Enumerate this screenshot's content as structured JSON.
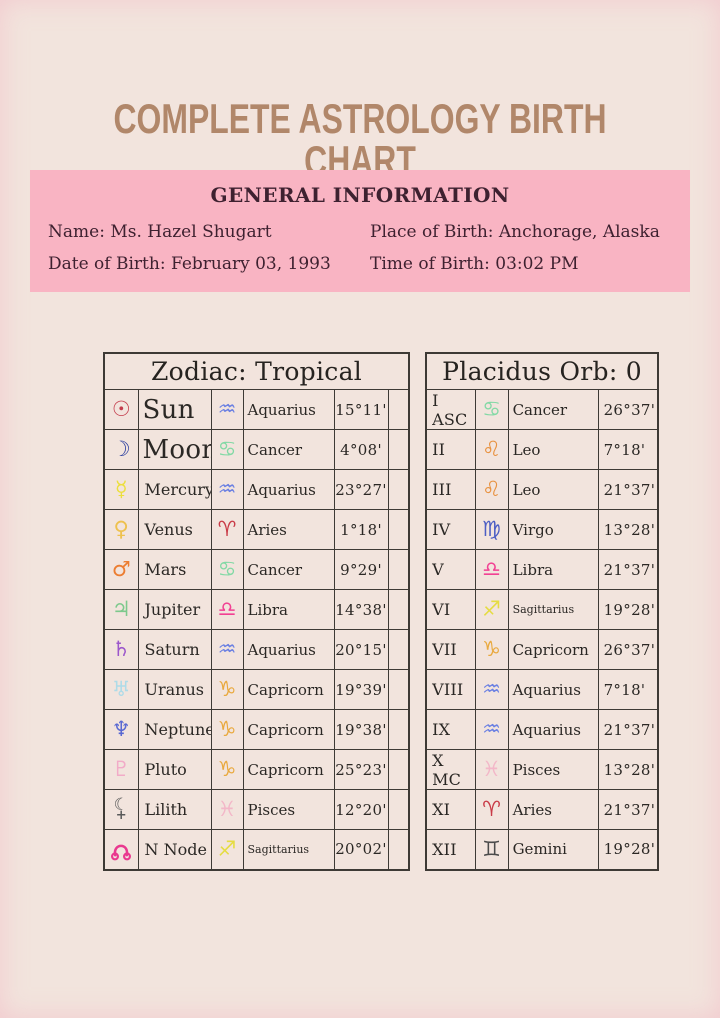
{
  "title": "COMPLETE ASTROLOGY BIRTH CHART",
  "general_info": {
    "heading": "GENERAL INFORMATION",
    "name": "Name: Ms. Hazel Shugart",
    "date_of_birth": "Date of Birth: February 03, 1993",
    "place_of_birth": "Place of Birth: Anchorage, Alaska",
    "time_of_birth": "Time of Birth: 03:02 PM"
  },
  "colors": {
    "background": "#f2e4dd",
    "pink_panel": "#f9b4c3",
    "title_brown": "#b1876a",
    "maroon_text": "#3e2130",
    "table_border": "#3e3a35"
  },
  "planet_icons": {
    "Sun": {
      "name": "sun-icon",
      "glyph": "☉",
      "color": "#c43c4c"
    },
    "Moon": {
      "name": "moon-icon",
      "glyph": "☽",
      "color": "#2c3f9f"
    },
    "Mercury": {
      "name": "mercury-icon",
      "glyph": "☿",
      "color": "#ecdf3d"
    },
    "Venus": {
      "name": "venus-icon",
      "glyph": "♀",
      "color": "#eec14e"
    },
    "Mars": {
      "name": "mars-icon",
      "glyph": "♂",
      "color": "#ec7d31"
    },
    "Jupiter": {
      "name": "jupiter-icon",
      "glyph": "♃",
      "color": "#7dc98c"
    },
    "Saturn": {
      "name": "saturn-icon",
      "glyph": "♄",
      "color": "#9c57cb"
    },
    "Uranus": {
      "name": "uranus-icon",
      "glyph": "♅",
      "color": "#aedbe8"
    },
    "Neptune": {
      "name": "neptune-icon",
      "glyph": "♆",
      "color": "#5a69d2"
    },
    "Pluto": {
      "name": "pluto-icon",
      "glyph": "♇",
      "color": "#f2abc8"
    },
    "Lilith": {
      "name": "lilith-icon",
      "glyph": "☾",
      "glyph2": "+",
      "color": "#5a5a5a"
    },
    "N Node": {
      "name": "north-node-icon",
      "svg": "node",
      "color": "#e9388f"
    }
  },
  "sign_icons": {
    "Aries": {
      "name": "aries-icon",
      "glyph": "♈",
      "color": "#c93b47"
    },
    "Gemini": {
      "name": "gemini-icon",
      "glyph": "♊",
      "color": "#4b4b4b"
    },
    "Cancer": {
      "name": "cancer-icon",
      "glyph": "♋",
      "color": "#83d9a5"
    },
    "Leo": {
      "name": "leo-icon",
      "glyph": "♌",
      "color": "#e8913f"
    },
    "Virgo": {
      "name": "virgo-icon",
      "glyph": "♍",
      "color": "#4c5ec4"
    },
    "Libra": {
      "name": "libra-icon",
      "glyph": "♎",
      "color": "#f24193"
    },
    "Sagittarius": {
      "name": "sagittarius-icon",
      "glyph": "♐",
      "color": "#e5dc42"
    },
    "Capricorn": {
      "name": "capricorn-icon",
      "glyph": "♑",
      "color": "#e9a93e"
    },
    "Aquarius": {
      "name": "aquarius-icon",
      "glyph": "♒",
      "color": "#6b80e2"
    },
    "Pisces": {
      "name": "pisces-icon",
      "glyph": "♓",
      "color": "#f3b7c8"
    }
  },
  "zodiac_table": {
    "title": "Zodiac: Tropical",
    "rows": [
      {
        "planet": "Sun",
        "sign": "Aquarius",
        "degrees": "15°11'"
      },
      {
        "planet": "Moon",
        "sign": "Cancer",
        "degrees": "4°08'"
      },
      {
        "planet": "Mercury",
        "sign": "Aquarius",
        "degrees": "23°27'"
      },
      {
        "planet": "Venus",
        "sign": "Aries",
        "degrees": "1°18'"
      },
      {
        "planet": "Mars",
        "sign": "Cancer",
        "degrees": "9°29'"
      },
      {
        "planet": "Jupiter",
        "sign": "Libra",
        "degrees": "14°38'"
      },
      {
        "planet": "Saturn",
        "sign": "Aquarius",
        "degrees": "20°15'"
      },
      {
        "planet": "Uranus",
        "sign": "Capricorn",
        "degrees": "19°39'"
      },
      {
        "planet": "Neptune",
        "sign": "Capricorn",
        "degrees": "19°38'"
      },
      {
        "planet": "Pluto",
        "sign": "Capricorn",
        "degrees": "25°23'"
      },
      {
        "planet": "Lilith",
        "sign": "Pisces",
        "degrees": "12°20'"
      },
      {
        "planet": "N Node",
        "sign": "Sagittarius",
        "degrees": "20°02'"
      }
    ]
  },
  "houses_table": {
    "title": "Placidus Orb: 0",
    "rows": [
      {
        "house": "I ASC",
        "sign": "Cancer",
        "degrees": "26°37'"
      },
      {
        "house": "II",
        "sign": "Leo",
        "degrees": "7°18'"
      },
      {
        "house": "III",
        "sign": "Leo",
        "degrees": "21°37'"
      },
      {
        "house": "IV",
        "sign": "Virgo",
        "degrees": "13°28'"
      },
      {
        "house": "V",
        "sign": "Libra",
        "degrees": "21°37'"
      },
      {
        "house": "VI",
        "sign": "Sagittarius",
        "degrees": "19°28'"
      },
      {
        "house": "VII",
        "sign": "Capricorn",
        "degrees": "26°37'"
      },
      {
        "house": "VIII",
        "sign": "Aquarius",
        "degrees": "7°18'"
      },
      {
        "house": "IX",
        "sign": "Aquarius",
        "degrees": "21°37'"
      },
      {
        "house": "X MC",
        "sign": "Pisces",
        "degrees": "13°28'"
      },
      {
        "house": "XI",
        "sign": "Aries",
        "degrees": "21°37'"
      },
      {
        "house": "XII",
        "sign": "Gemini",
        "degrees": "19°28'"
      }
    ]
  }
}
